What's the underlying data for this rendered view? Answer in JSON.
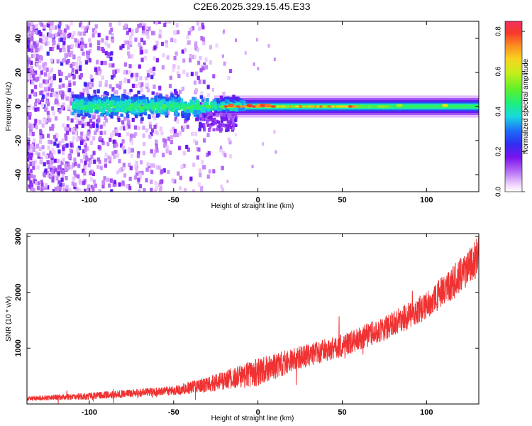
{
  "page_title": "C2E6.2025.329.15.45.E33",
  "chart_data": [
    {
      "type": "heatmap",
      "title": "C2E6.2025.329.15.45.E33",
      "xlabel": "Height of straight line (km)",
      "ylabel": "Frequency (Hz)",
      "xlim": [
        -137,
        131
      ],
      "ylim": [
        -50,
        50
      ],
      "xticks": [
        -100,
        -50,
        0,
        50,
        100
      ],
      "yticks": [
        -40,
        -20,
        0,
        20,
        40
      ],
      "grid": false,
      "colorbar": {
        "label": "Normalized spectral amplitude",
        "range": [
          0.0,
          0.85
        ],
        "ticks": [
          0.0,
          0.2,
          0.4,
          0.6,
          0.8
        ]
      },
      "features": {
        "main_band_center_hz": 0,
        "main_band_halfwidth_hz": 3,
        "noise_region_x_range": [
          -137,
          -28
        ],
        "peak_amplitude": 0.85,
        "peak_x_range": [
          -20,
          60
        ]
      }
    },
    {
      "type": "line",
      "xlabel": "Height of straight line (km)",
      "ylabel": "SNR (10 * v/v)",
      "xlim": [
        -137,
        131
      ],
      "ylim": [
        0,
        3050
      ],
      "xticks": [
        -100,
        -50,
        0,
        50,
        100
      ],
      "yticks": [
        1000,
        2000,
        3000
      ],
      "grid": false,
      "series": [
        {
          "color": "#f03232",
          "trend_x": [
            -137,
            -100,
            -75,
            -50,
            -25,
            0,
            25,
            50,
            75,
            100,
            115,
            131
          ],
          "trend_y": [
            100,
            140,
            190,
            240,
            380,
            570,
            830,
            1050,
            1350,
            1750,
            2150,
            2650
          ],
          "noise_amplitude": [
            40,
            60,
            70,
            80,
            150,
            250,
            200,
            200,
            220,
            250,
            300,
            350
          ]
        }
      ]
    }
  ]
}
